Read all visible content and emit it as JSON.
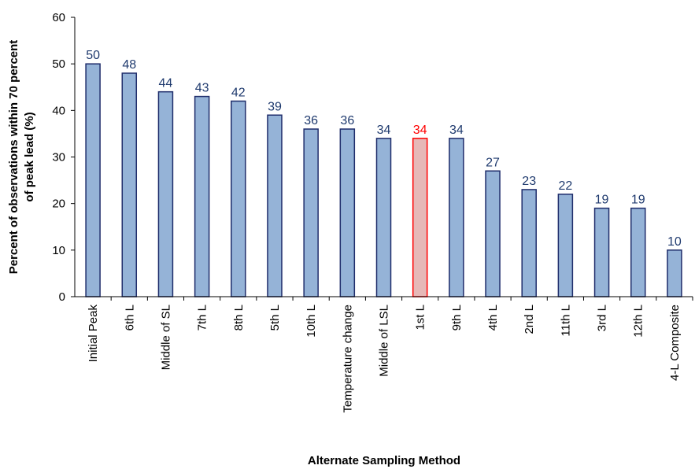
{
  "chart_data": {
    "type": "bar",
    "xlabel": "Alternate Sampling Method",
    "ylabel_lines": [
      "Percent of observations within 70 percent",
      "of peak lead (%)"
    ],
    "ylim": [
      0,
      60
    ],
    "yticks": [
      "0",
      "10",
      "20",
      "30",
      "40",
      "50",
      "60"
    ],
    "categories": [
      "Initial Peak",
      "6th L",
      "Middle of SL",
      "7th L",
      "8th L",
      "5th L",
      "10th L",
      "Temperature change",
      "Middle of LSL",
      "1st L",
      "9th L",
      "4th L",
      "2nd L",
      "11th L",
      "3rd L",
      "12th L",
      "4-L Composite"
    ],
    "values": [
      50,
      48,
      44,
      43,
      42,
      39,
      36,
      36,
      34,
      34,
      34,
      27,
      23,
      22,
      19,
      19,
      10
    ],
    "highlight_index": 9,
    "grid": false,
    "legend": "none",
    "colors": {
      "bar_fill": "#95b3d7",
      "bar_stroke": "#1f2d6b",
      "label": "#1f3a6e",
      "highlight_fill": "#e6b8b7",
      "highlight_stroke": "#ff0000",
      "highlight_label": "#ff0000",
      "axis": "#000000"
    }
  }
}
